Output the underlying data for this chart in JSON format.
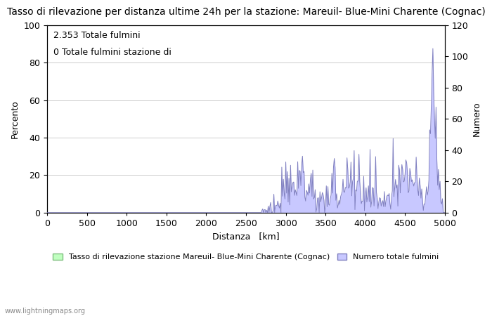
{
  "title": "Tasso di rilevazione per distanza ultime 24h per la stazione: Mareuil- Blue-Mini Charente (Cognac)",
  "annotation_line1": "2.353 Totale fulmini",
  "annotation_line2": "0 Totale fulmini stazione di",
  "xlabel": "Distanza   [km]",
  "ylabel_left_label": "Percento",
  "ylabel_right": "Numero",
  "xlim": [
    0,
    5000
  ],
  "ylim_left": [
    0,
    100
  ],
  "ylim_right": [
    0,
    120
  ],
  "xticks": [
    0,
    500,
    1000,
    1500,
    2000,
    2500,
    3000,
    3500,
    4000,
    4500,
    5000
  ],
  "yticks_left": [
    0,
    20,
    40,
    60,
    80,
    100
  ],
  "yticks_right": [
    0,
    20,
    40,
    60,
    80,
    100,
    120
  ],
  "grid_color": "#cccccc",
  "fill_color_blue": "#c8c8ff",
  "line_color_blue": "#8080c0",
  "fill_color_green": "#c0ffc0",
  "line_color_green": "#80c080",
  "background_color": "#ffffff",
  "watermark": "www.lightningmaps.org",
  "legend_label_green": "Tasso di rilevazione stazione Mareuil- Blue-Mini Charente (Cognac)",
  "legend_label_blue": "Numero totale fulmini",
  "title_fontsize": 10,
  "label_fontsize": 9,
  "tick_fontsize": 9,
  "annot_fontsize": 9
}
